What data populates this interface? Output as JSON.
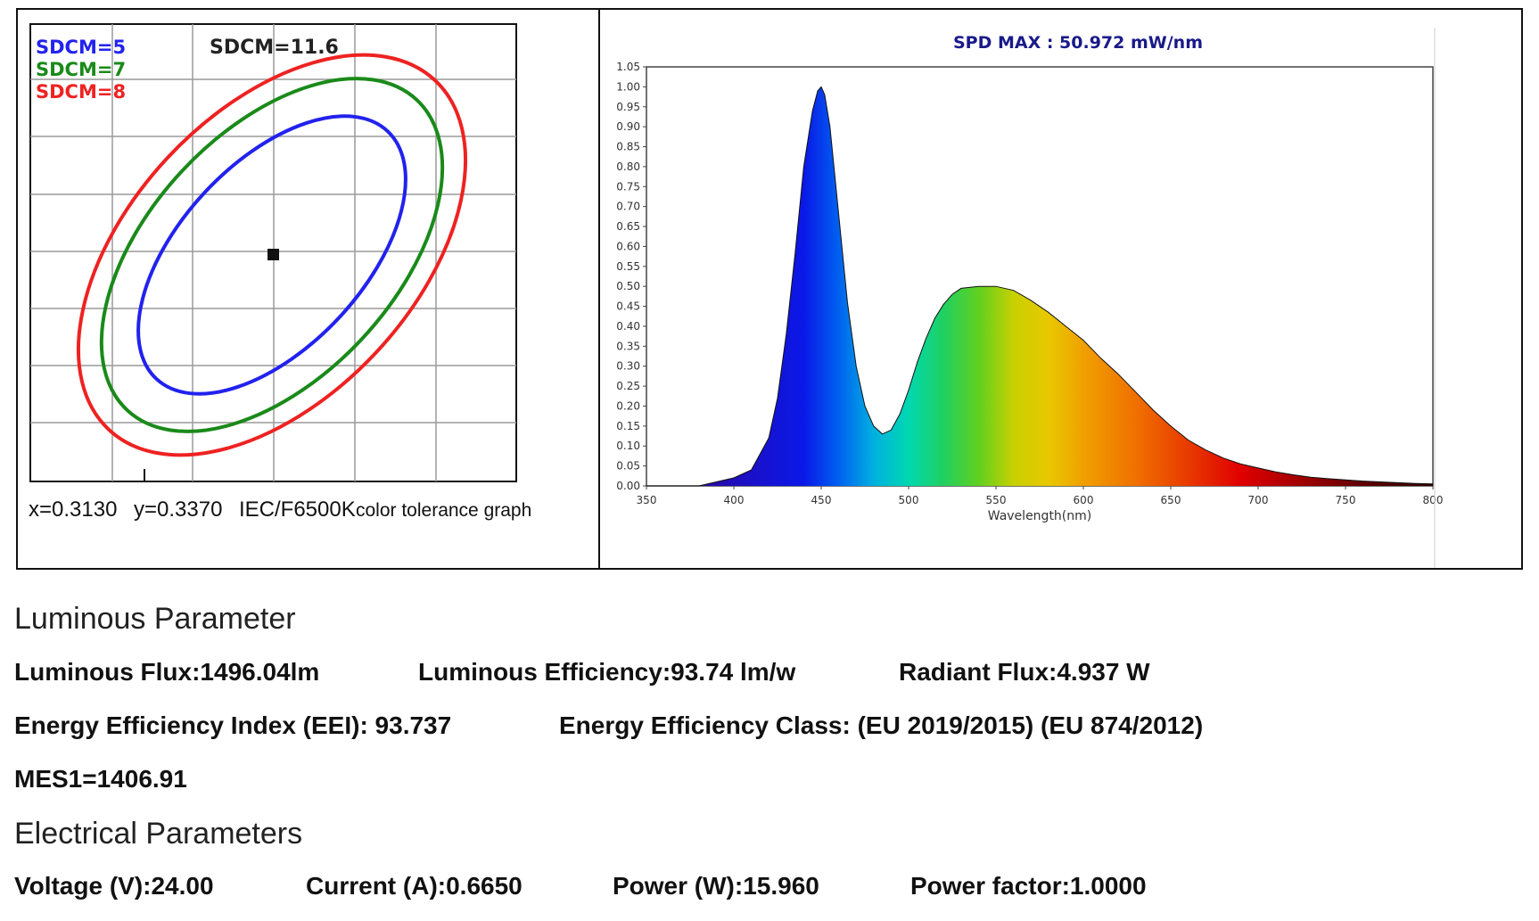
{
  "sdcm_panel": {
    "legend": [
      {
        "label": "SDCM=5",
        "color": "#2222ee"
      },
      {
        "label": "SDCM=7",
        "color": "#1a8a1a"
      },
      {
        "label": "SDCM=8",
        "color": "#ee2222"
      }
    ],
    "measured_label": "SDCM=11.6",
    "x_label": "x=0.3130",
    "y_label": "y=0.3370",
    "standard_label": "IEC/F6500K",
    "caption": "color tolerance graph"
  },
  "chart_data": {
    "type": "area",
    "title": "SPD  MAX  : 50.972 mW/nm",
    "xlabel": "Wavelength(nm)",
    "ylabel": "",
    "xlim": [
      350,
      800
    ],
    "ylim": [
      0,
      1.05
    ],
    "x_ticks": [
      "350",
      "400",
      "450",
      "500",
      "550",
      "600",
      "650",
      "700",
      "750",
      "800"
    ],
    "y_ticks": [
      "0.00",
      "0.05",
      "0.10",
      "0.15",
      "0.20",
      "0.25",
      "0.30",
      "0.35",
      "0.40",
      "0.45",
      "0.50",
      "0.55",
      "0.60",
      "0.65",
      "0.70",
      "0.75",
      "0.80",
      "0.85",
      "0.90",
      "0.95",
      "1.00",
      "1.05"
    ],
    "series": [
      {
        "x": [
          350,
          380,
          390,
          400,
          410,
          420,
          425,
          430,
          435,
          440,
          445,
          448,
          450,
          452,
          455,
          460,
          465,
          470,
          475,
          480,
          485,
          490,
          495,
          500,
          505,
          510,
          515,
          520,
          525,
          530,
          540,
          550,
          560,
          570,
          580,
          590,
          600,
          610,
          620,
          630,
          640,
          650,
          660,
          670,
          680,
          690,
          700,
          710,
          720,
          730,
          740,
          750,
          760,
          770,
          780,
          790,
          800
        ],
        "y": [
          0.0,
          0.0,
          0.01,
          0.02,
          0.04,
          0.12,
          0.22,
          0.38,
          0.58,
          0.8,
          0.94,
          0.99,
          1.0,
          0.98,
          0.9,
          0.68,
          0.46,
          0.3,
          0.2,
          0.15,
          0.13,
          0.14,
          0.18,
          0.24,
          0.31,
          0.37,
          0.42,
          0.455,
          0.48,
          0.495,
          0.5,
          0.5,
          0.49,
          0.465,
          0.435,
          0.4,
          0.365,
          0.32,
          0.28,
          0.235,
          0.19,
          0.15,
          0.115,
          0.09,
          0.07,
          0.055,
          0.045,
          0.035,
          0.028,
          0.022,
          0.018,
          0.015,
          0.012,
          0.01,
          0.008,
          0.006,
          0.005
        ]
      }
    ]
  },
  "luminous": {
    "title": "Luminous Parameter",
    "flux": "Luminous Flux:1496.04lm",
    "efficiency": "Luminous Efficiency:93.74 lm/w",
    "radiant_flux": "Radiant Flux:4.937 W",
    "eei": "Energy Efficiency Index (EEI): 93.737",
    "eec": "Energy Efficiency Class: (EU 2019/2015) (EU 874/2012)",
    "mes": "MES1=1406.91"
  },
  "electrical": {
    "title": "Electrical Parameters",
    "voltage": "Voltage (V):24.00",
    "current": "Current (A):0.6650",
    "power": "Power (W):15.960",
    "power_factor": "Power factor:1.0000"
  }
}
